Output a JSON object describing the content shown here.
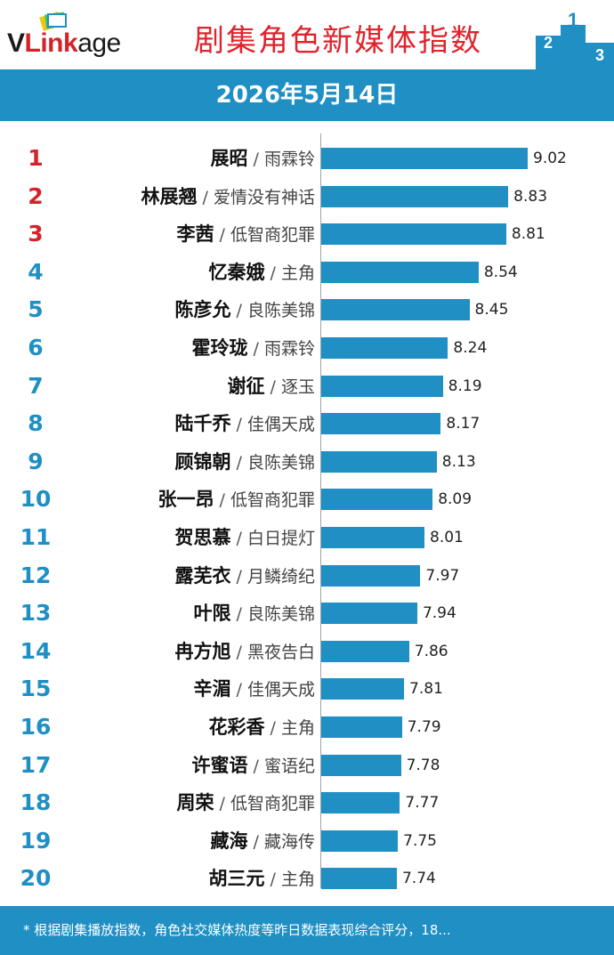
{
  "header": {
    "logo": "VLinkage",
    "title": "剧集角色新媒体指数"
  },
  "date": "2026年5月14日",
  "chart_data": {
    "type": "bar",
    "orientation": "horizontal",
    "title": "剧集角色新媒体指数",
    "xlim": [
      7.0,
      9.02
    ],
    "bar_color": "#1f8fc4",
    "rows": [
      {
        "rank": "1",
        "name": "展昭",
        "drama": "雨霖铃",
        "value": 9.02
      },
      {
        "rank": "2",
        "name": "林展翘",
        "drama": "爱情没有神话",
        "value": 8.83
      },
      {
        "rank": "3",
        "name": "李茜",
        "drama": "低智商犯罪",
        "value": 8.81
      },
      {
        "rank": "4",
        "name": "忆秦娥",
        "drama": "主角",
        "value": 8.54
      },
      {
        "rank": "5",
        "name": "陈彦允",
        "drama": "良陈美锦",
        "value": 8.45
      },
      {
        "rank": "6",
        "name": "霍玲珑",
        "drama": "雨霖铃",
        "value": 8.24
      },
      {
        "rank": "7",
        "name": "谢征",
        "drama": "逐玉",
        "value": 8.19
      },
      {
        "rank": "8",
        "name": "陆千乔",
        "drama": "佳偶天成",
        "value": 8.17
      },
      {
        "rank": "9",
        "name": "顾锦朝",
        "drama": "良陈美锦",
        "value": 8.13
      },
      {
        "rank": "10",
        "name": "张一昂",
        "drama": "低智商犯罪",
        "value": 8.09
      },
      {
        "rank": "11",
        "name": "贺思慕",
        "drama": "白日提灯",
        "value": 8.01
      },
      {
        "rank": "12",
        "name": "露芜衣",
        "drama": "月鳞绮纪",
        "value": 7.97
      },
      {
        "rank": "13",
        "name": "叶限",
        "drama": "良陈美锦",
        "value": 7.94
      },
      {
        "rank": "14",
        "name": "冉方旭",
        "drama": "黑夜告白",
        "value": 7.86
      },
      {
        "rank": "15",
        "name": "辛湄",
        "drama": "佳偶天成",
        "value": 7.81
      },
      {
        "rank": "16",
        "name": "花彩香",
        "drama": "主角",
        "value": 7.79
      },
      {
        "rank": "17",
        "name": "许蜜语",
        "drama": "蜜语纪",
        "value": 7.78
      },
      {
        "rank": "18",
        "name": "周荣",
        "drama": "低智商犯罪",
        "value": 7.77
      },
      {
        "rank": "19",
        "name": "藏海",
        "drama": "藏海传",
        "value": 7.75
      },
      {
        "rank": "20",
        "name": "胡三元",
        "drama": "主角",
        "value": 7.74
      }
    ]
  },
  "footer": {
    "note": "* 根据剧集播放指数，角色社交媒体热度等昨日数据表现综合评分，18..."
  },
  "colors": {
    "accent": "#1f8fc4",
    "title_red": "#e0232d",
    "rank_red": "#d4232a"
  }
}
